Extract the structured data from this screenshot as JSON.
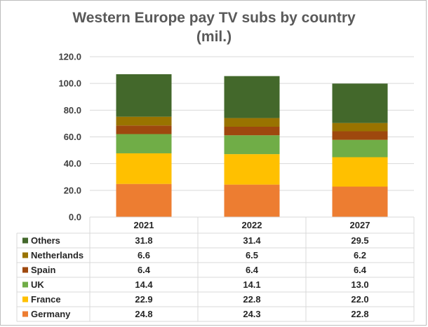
{
  "chart_data": {
    "type": "bar",
    "stacked": true,
    "title_lines": [
      "Western Europe pay TV subs by country",
      "(mil.)"
    ],
    "categories": [
      "2021",
      "2022",
      "2027"
    ],
    "ylim": [
      0,
      120
    ],
    "yticks": [
      "0.0",
      "20.0",
      "40.0",
      "60.0",
      "80.0",
      "100.0",
      "120.0"
    ],
    "grid": true,
    "legend": "data-table",
    "series": [
      {
        "name": "Germany",
        "color": "#ed7d31",
        "values": [
          24.8,
          24.3,
          22.8
        ],
        "labels": [
          "24.8",
          "24.3",
          "22.8"
        ]
      },
      {
        "name": "France",
        "color": "#ffc000",
        "values": [
          22.9,
          22.8,
          22.0
        ],
        "labels": [
          "22.9",
          "22.8",
          "22.0"
        ]
      },
      {
        "name": "UK",
        "color": "#70ad47",
        "values": [
          14.4,
          14.1,
          13.0
        ],
        "labels": [
          "14.4",
          "14.1",
          "13.0"
        ]
      },
      {
        "name": "Spain",
        "color": "#9e480e",
        "values": [
          6.4,
          6.4,
          6.4
        ],
        "labels": [
          "6.4",
          "6.4",
          "6.4"
        ]
      },
      {
        "name": "Netherlands",
        "color": "#997300",
        "values": [
          6.6,
          6.5,
          6.2
        ],
        "labels": [
          "6.6",
          "6.5",
          "6.2"
        ]
      },
      {
        "name": "Others",
        "color": "#43682b",
        "values": [
          31.8,
          31.4,
          29.5
        ],
        "labels": [
          "31.8",
          "31.4",
          "29.5"
        ]
      }
    ]
  }
}
